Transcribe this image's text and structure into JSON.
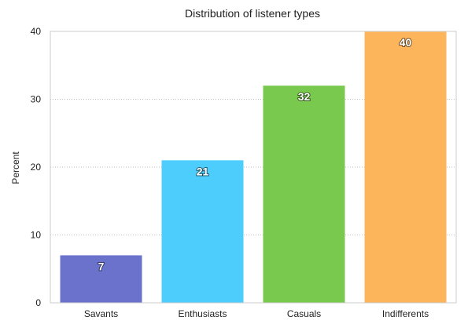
{
  "chart_data": {
    "type": "bar",
    "title": "Distribution of listener types",
    "xlabel": "",
    "ylabel": "Percent",
    "categories": [
      "Savants",
      "Enthusiasts",
      "Casuals",
      "Indifferents"
    ],
    "values": [
      7,
      21,
      32,
      40
    ],
    "colors": [
      "#6b72cc",
      "#4ccdfb",
      "#78c94d",
      "#fdb55c"
    ],
    "ylim": [
      0,
      40
    ],
    "yticks": [
      0,
      10,
      20,
      30,
      40
    ],
    "grid": true,
    "legend": "none"
  }
}
